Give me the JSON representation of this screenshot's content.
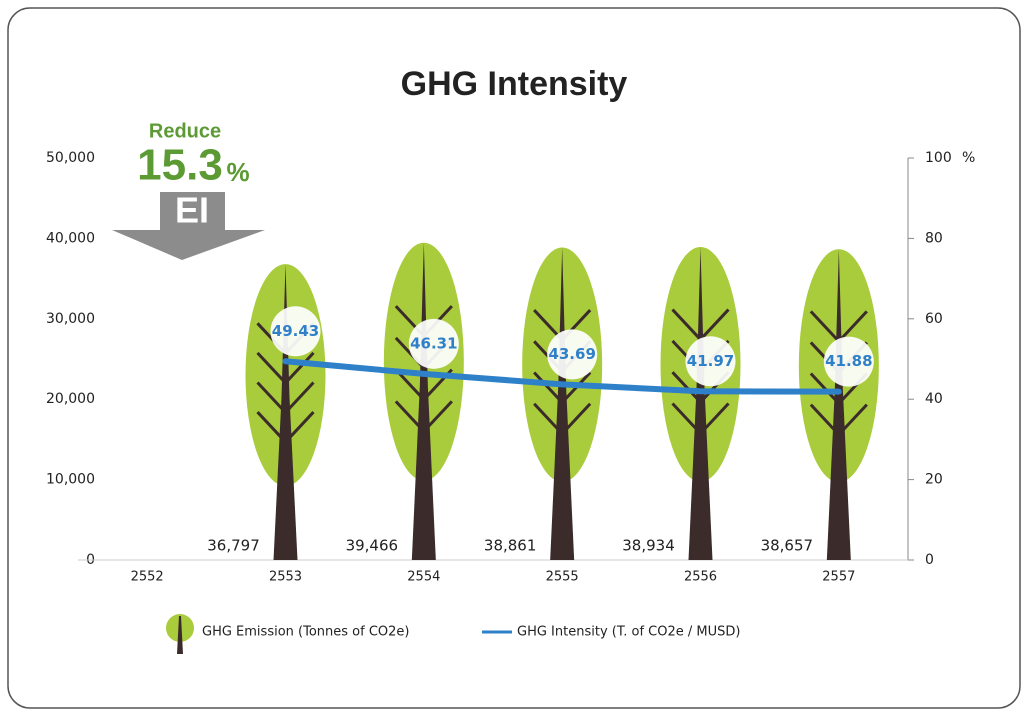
{
  "chart_data": {
    "type": "combo",
    "title": "GHG Intensity",
    "categories": [
      "2552",
      "2553",
      "2554",
      "2555",
      "2556",
      "2557"
    ],
    "series": [
      {
        "name": "GHG Emission (Tonnes of CO2e)",
        "type": "bar",
        "color": "#a9cc3c",
        "trunk_color": "#3b2b2b",
        "values": [
          null,
          36797,
          39466,
          38861,
          38934,
          38657
        ],
        "value_labels": [
          null,
          "36,797",
          "39,466",
          "38,861",
          "38,934",
          "38,657"
        ]
      },
      {
        "name": "GHG Intensity (T. of CO2e / MUSD)",
        "type": "line",
        "color": "#2e80c9",
        "axis": "y2",
        "values": [
          null,
          49.43,
          46.31,
          43.69,
          41.97,
          41.88
        ]
      }
    ],
    "ylim": [
      0,
      50000
    ],
    "yticks": [
      0,
      {
        "value": 10000,
        "label": "10,000"
      },
      {
        "value": 20000,
        "label": "20,000"
      },
      {
        "value": 30000,
        "label": "30,000"
      },
      {
        "value": 40000,
        "label": "40,000"
      },
      {
        "value": 50000,
        "label": "50,000"
      }
    ],
    "y2lim": [
      0,
      100
    ],
    "y2ticks": [
      0,
      20,
      40,
      60,
      80,
      100
    ],
    "y2label": "%",
    "annotation": {
      "text": "Reduce",
      "amount": 15.3,
      "unit": "%",
      "label": "EI"
    }
  }
}
